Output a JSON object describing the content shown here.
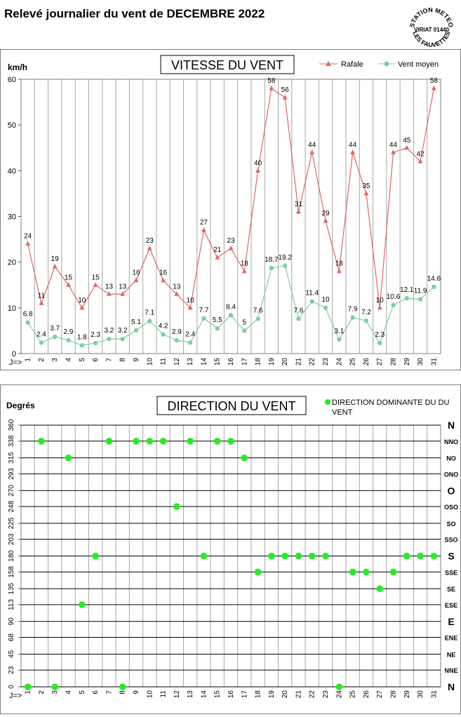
{
  "page": {
    "title": "Relevé journalier du vent de DECEMBRE 2022",
    "stamp": [
      "STATION METEO",
      "VIRIAT 01440",
      "LES FAUVETTES"
    ]
  },
  "colors": {
    "rafale": "#e06666",
    "moyen": "#7fcf9f",
    "direction": "#22ee22",
    "grid": "#a6a6a6"
  },
  "chart_data": [
    {
      "type": "line",
      "title": "VITESSE DU VENT",
      "ylabel": "km/h",
      "xprefix": "J=>",
      "ylim": [
        0,
        60
      ],
      "yticks": [
        0,
        10,
        20,
        30,
        40,
        50,
        60
      ],
      "grid": true,
      "legend": "top-right",
      "categories": [
        "1",
        "2",
        "3",
        "4",
        "5",
        "6",
        "7",
        "8",
        "9",
        "10",
        "11",
        "12",
        "13",
        "14",
        "15",
        "16",
        "17",
        "18",
        "19",
        "20",
        "21",
        "22",
        "23",
        "24",
        "25",
        "26",
        "27",
        "28",
        "29",
        "30",
        "31"
      ],
      "series": [
        {
          "name": "Rafale",
          "values": [
            24,
            11,
            19,
            15,
            10,
            15,
            13,
            13,
            16,
            23,
            16,
            13,
            10,
            27,
            21,
            23,
            18,
            40,
            58,
            56,
            31,
            44,
            29,
            18,
            44,
            35,
            10,
            44,
            45,
            42,
            58
          ],
          "labels": [
            "24",
            "11",
            "19",
            "15",
            "10",
            "15",
            "13",
            "13",
            "16",
            "23",
            "16",
            "13",
            "10",
            "27",
            "21",
            "23",
            "18",
            "40",
            "58",
            "56",
            "31",
            "44",
            "29",
            "18",
            "44",
            "35",
            "10",
            "44",
            "45",
            "42",
            "58"
          ]
        },
        {
          "name": "Vent moyen",
          "values": [
            6.8,
            2.4,
            3.7,
            2.9,
            1.8,
            2.3,
            3.2,
            3.2,
            5.1,
            7.1,
            4.2,
            2.9,
            2.4,
            7.7,
            5.5,
            8.4,
            5,
            7.6,
            18.7,
            19.2,
            7.6,
            11.4,
            10,
            3.1,
            7.9,
            7.2,
            2.3,
            10.6,
            12.1,
            11.9,
            14.6
          ],
          "labels": [
            "6.8",
            "2.4",
            "3.7",
            "2.9",
            "1.8",
            "2.3",
            "3.2",
            "3.2",
            "5.1",
            "7.1",
            "4.2",
            "2.9",
            "2.4",
            "7.7",
            "5.5",
            "8.4",
            "5",
            "7.6",
            "18.7",
            "19.2",
            "7.6",
            "11.4",
            "10",
            "3.1",
            "7.9",
            "7.2",
            "2.3",
            "10.6",
            "12.1",
            "11.9",
            "14.6"
          ]
        }
      ]
    },
    {
      "type": "scatter",
      "title": "DIRECTION DU VENT",
      "ylabel": "Degrés",
      "xprefix": "J=>",
      "ylim": [
        0,
        360
      ],
      "yticks": [
        0,
        23,
        45,
        68,
        90,
        113,
        135,
        158,
        180,
        203,
        225,
        248,
        270,
        293,
        315,
        338,
        360
      ],
      "ytick_labels": [
        "0",
        "23",
        "45",
        "68",
        "90",
        "113",
        "135",
        "158",
        "180",
        "203",
        "225",
        "248",
        "270",
        "293",
        "315",
        "338",
        "360"
      ],
      "compass": [
        {
          "label": "N",
          "deg": 0,
          "big": true
        },
        {
          "label": "NNE",
          "deg": 23,
          "big": false
        },
        {
          "label": "NE",
          "deg": 45,
          "big": false
        },
        {
          "label": "ENE",
          "deg": 68,
          "big": false
        },
        {
          "label": "E",
          "deg": 90,
          "big": true
        },
        {
          "label": "ESE",
          "deg": 113,
          "big": false
        },
        {
          "label": "SE",
          "deg": 135,
          "big": false
        },
        {
          "label": "SSE",
          "deg": 158,
          "big": false
        },
        {
          "label": "S",
          "deg": 180,
          "big": true
        },
        {
          "label": "SSO",
          "deg": 203,
          "big": false
        },
        {
          "label": "SO",
          "deg": 225,
          "big": false
        },
        {
          "label": "OSO",
          "deg": 248,
          "big": false
        },
        {
          "label": "O",
          "deg": 270,
          "big": true
        },
        {
          "label": "ONO",
          "deg": 293,
          "big": false
        },
        {
          "label": "NO",
          "deg": 315,
          "big": false
        },
        {
          "label": "NNO",
          "deg": 338,
          "big": false
        },
        {
          "label": "N",
          "deg": 360,
          "big": true
        }
      ],
      "grid": true,
      "legend": "top-right",
      "categories": [
        "1",
        "2",
        "3",
        "4",
        "5",
        "6",
        "7",
        "8",
        "9",
        "10",
        "11",
        "12",
        "13",
        "14",
        "15",
        "16",
        "17",
        "18",
        "19",
        "20",
        "21",
        "22",
        "23",
        "24",
        "25",
        "26",
        "27",
        "28",
        "29",
        "30",
        "31"
      ],
      "series": [
        {
          "name": "DIRECTION DOMINANTE DU VENT",
          "values": [
            0,
            338,
            0,
            315,
            113,
            180,
            338,
            0,
            338,
            338,
            338,
            248,
            338,
            180,
            338,
            338,
            315,
            158,
            180,
            180,
            180,
            180,
            180,
            0,
            158,
            158,
            135,
            158,
            180,
            180,
            180
          ]
        }
      ]
    }
  ]
}
